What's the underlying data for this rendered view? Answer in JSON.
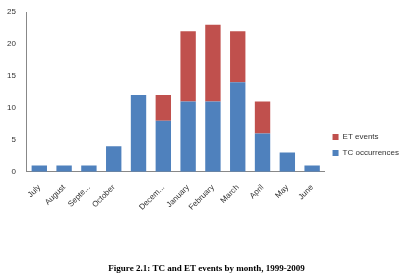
{
  "chart_data": {
    "type": "bar",
    "title": "Figure 2.1: TC and ET events by month, 1999-2009",
    "categories": [
      "July",
      "August",
      "Septe...",
      "October",
      null,
      "Decem...",
      "January",
      "February",
      "March",
      "April",
      "May",
      "June"
    ],
    "series": [
      {
        "name": "TC occurrences",
        "color": "#4f81bd",
        "values": [
          1,
          1,
          1,
          4,
          12,
          8,
          11,
          11,
          14,
          6,
          3,
          1
        ]
      },
      {
        "name": "ET events",
        "color": "#c0504d",
        "values": [
          0,
          0,
          0,
          0,
          0,
          4,
          11,
          12,
          8,
          5,
          0,
          0
        ]
      }
    ],
    "ylim": [
      0,
      25
    ],
    "yticks": [
      0,
      5,
      10,
      15,
      20,
      25
    ],
    "stacked": true,
    "grid": false,
    "legend": "right"
  }
}
